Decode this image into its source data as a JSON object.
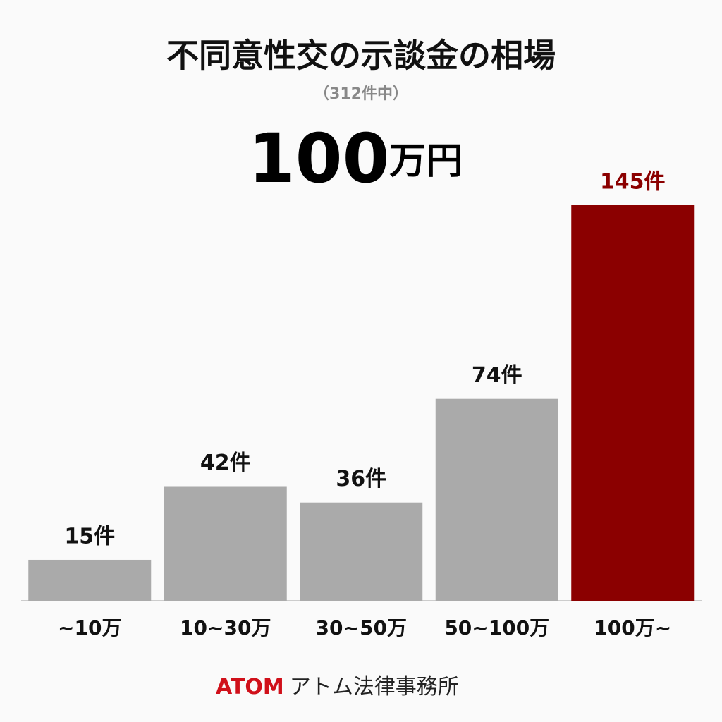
{
  "chart_data": {
    "type": "bar",
    "title": "不同意性交の示談金の相場",
    "subtitle": "（312件中）",
    "annotation": {
      "number": "100",
      "unit": "万円"
    },
    "categories": [
      "~10万",
      "10~30万",
      "30~50万",
      "50~100万",
      "100万~"
    ],
    "values": [
      15,
      42,
      36,
      74,
      145
    ],
    "value_labels": [
      "15件",
      "42件",
      "36件",
      "74件",
      "145件"
    ],
    "colors": [
      "#aaaaaa",
      "#aaaaaa",
      "#aaaaaa",
      "#aaaaaa",
      "#8b0000"
    ],
    "source": {
      "brand": "ATOM",
      "name": "アトム法律事務所"
    }
  }
}
